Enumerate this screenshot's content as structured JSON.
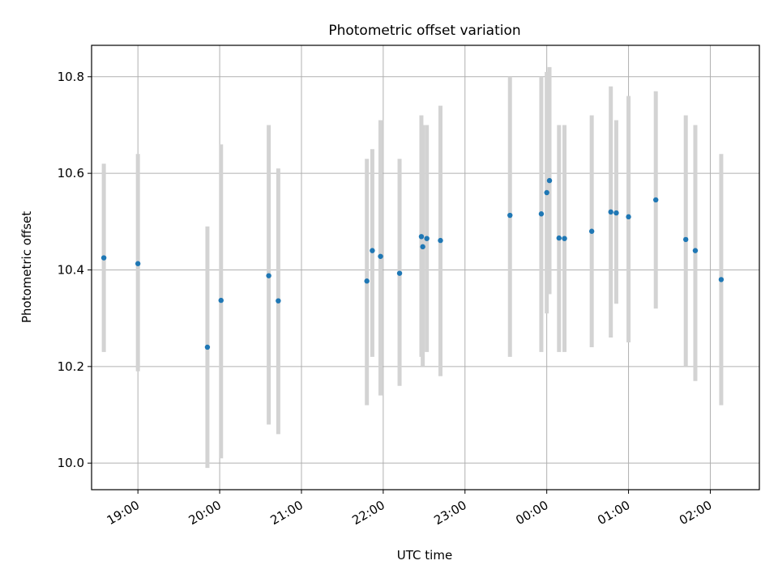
{
  "chart_data": {
    "type": "scatter",
    "title": "Photometric offset variation",
    "xlabel": "UTC time",
    "ylabel": "Photometric offset",
    "xlim": [
      "18:26",
      "02:36"
    ],
    "ylim": [
      9.945,
      10.865
    ],
    "xticks": [
      "19:00",
      "20:00",
      "21:00",
      "22:00",
      "23:00",
      "00:00",
      "01:00",
      "02:00"
    ],
    "yticks": [
      "10.0",
      "10.2",
      "10.4",
      "10.6",
      "10.8"
    ],
    "grid": true,
    "colors": {
      "point": "#1f77b4",
      "errorbar": "#d3d3d3",
      "grid": "#b0b0b0"
    },
    "points": [
      {
        "x": "18:35",
        "y": 10.425,
        "low": 10.23,
        "high": 10.62
      },
      {
        "x": "19:00",
        "y": 10.413,
        "low": 10.19,
        "high": 10.64
      },
      {
        "x": "19:51",
        "y": 10.24,
        "low": 9.99,
        "high": 10.49
      },
      {
        "x": "20:01",
        "y": 10.337,
        "low": 10.01,
        "high": 10.66
      },
      {
        "x": "20:36",
        "y": 10.388,
        "low": 10.08,
        "high": 10.7
      },
      {
        "x": "20:43",
        "y": 10.336,
        "low": 10.06,
        "high": 10.61
      },
      {
        "x": "21:48",
        "y": 10.377,
        "low": 10.12,
        "high": 10.63
      },
      {
        "x": "21:52",
        "y": 10.44,
        "low": 10.22,
        "high": 10.65
      },
      {
        "x": "21:58",
        "y": 10.428,
        "low": 10.14,
        "high": 10.71
      },
      {
        "x": "22:12",
        "y": 10.393,
        "low": 10.16,
        "high": 10.63
      },
      {
        "x": "22:28",
        "y": 10.469,
        "low": 10.22,
        "high": 10.72
      },
      {
        "x": "22:29",
        "y": 10.448,
        "low": 10.2,
        "high": 10.7
      },
      {
        "x": "22:32",
        "y": 10.465,
        "low": 10.23,
        "high": 10.7
      },
      {
        "x": "22:42",
        "y": 10.461,
        "low": 10.18,
        "high": 10.74
      },
      {
        "x": "23:33",
        "y": 10.513,
        "low": 10.22,
        "high": 10.8
      },
      {
        "x": "23:56",
        "y": 10.516,
        "low": 10.23,
        "high": 10.8
      },
      {
        "x": "00:00",
        "y": 10.56,
        "low": 10.31,
        "high": 10.81
      },
      {
        "x": "00:02",
        "y": 10.585,
        "low": 10.35,
        "high": 10.82
      },
      {
        "x": "00:09",
        "y": 10.466,
        "low": 10.23,
        "high": 10.7
      },
      {
        "x": "00:13",
        "y": 10.465,
        "low": 10.23,
        "high": 10.7
      },
      {
        "x": "00:33",
        "y": 10.48,
        "low": 10.24,
        "high": 10.72
      },
      {
        "x": "00:47",
        "y": 10.52,
        "low": 10.26,
        "high": 10.78
      },
      {
        "x": "00:51",
        "y": 10.518,
        "low": 10.33,
        "high": 10.71
      },
      {
        "x": "01:00",
        "y": 10.51,
        "low": 10.25,
        "high": 10.76
      },
      {
        "x": "01:20",
        "y": 10.545,
        "low": 10.32,
        "high": 10.77
      },
      {
        "x": "01:42",
        "y": 10.463,
        "low": 10.2,
        "high": 10.72
      },
      {
        "x": "01:49",
        "y": 10.44,
        "low": 10.17,
        "high": 10.7
      },
      {
        "x": "02:08",
        "y": 10.38,
        "low": 10.12,
        "high": 10.64
      }
    ]
  }
}
